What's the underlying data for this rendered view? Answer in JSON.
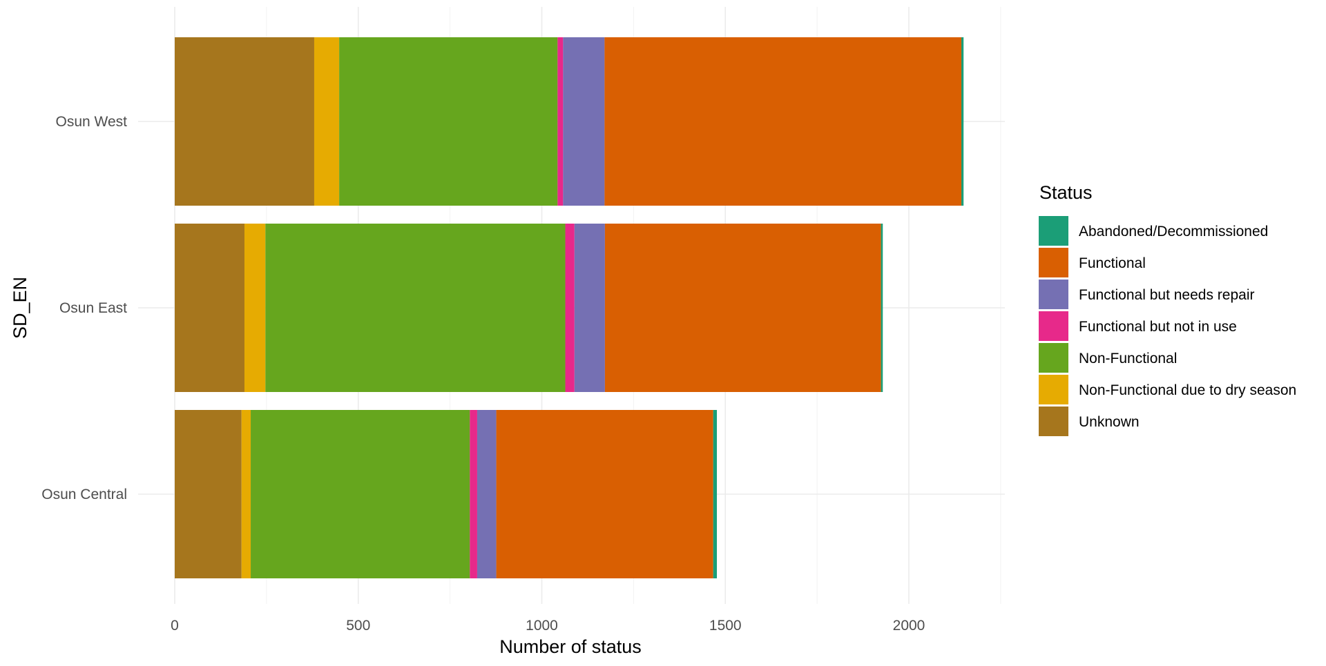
{
  "chart_data": {
    "type": "bar",
    "orientation": "horizontal",
    "stacked": true,
    "xlabel": "Number of status",
    "ylabel": "SD_EN",
    "xlim": [
      0,
      2250
    ],
    "x_ticks": [
      0,
      500,
      1000,
      1500,
      2000
    ],
    "categories": [
      "Osun West",
      "Osun East",
      "Osun Central"
    ],
    "legend": {
      "title": "Status",
      "placement": "right"
    },
    "grid": true,
    "series": [
      {
        "name": "Unknown",
        "color": "#A6761D",
        "values": [
          380,
          190,
          182
        ]
      },
      {
        "name": "Non-Functional due to dry season",
        "color": "#E6AB02",
        "values": [
          68,
          57,
          25
        ]
      },
      {
        "name": "Non-Functional",
        "color": "#66A61E",
        "values": [
          595,
          817,
          597
        ]
      },
      {
        "name": "Functional but not in use",
        "color": "#E7298A",
        "values": [
          15,
          25,
          20
        ]
      },
      {
        "name": "Functional but needs repair",
        "color": "#7570B3",
        "values": [
          113,
          83,
          52
        ]
      },
      {
        "name": "Functional",
        "color": "#D95F02",
        "values": [
          972,
          752,
          591
        ]
      },
      {
        "name": "Abandoned/Decommissioned",
        "color": "#1B9E77",
        "values": [
          6,
          5,
          10
        ]
      }
    ],
    "legend_order": [
      "Abandoned/Decommissioned",
      "Functional",
      "Functional but needs repair",
      "Functional but not in use",
      "Non-Functional",
      "Non-Functional due to dry season",
      "Unknown"
    ]
  }
}
